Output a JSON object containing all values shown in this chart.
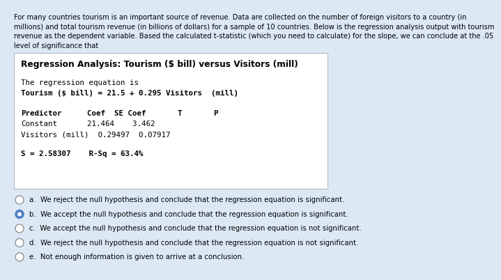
{
  "bg_color": "#dce9f5",
  "box_bg_color": "#ffffff",
  "text_color": "#000000",
  "intro_lines": [
    "For many countries tourism is an important source of revenue. Data are collected on the number of foreign visitors to a country (in",
    "millions) and total tourism revenue (in billions of dollars) for a sample of 10 countries. Below is the regression analysis output with tourism",
    "revenue as the dependent variable. Based the calculated t-statistic (which you need to calculate) for the slope, we can conclude at the .05",
    "level of significance that"
  ],
  "box_title": "Regression Analysis: Tourism ($ bill) versus Visitors (mill)",
  "line1": "The regression equation is",
  "line2": "Tourism ($ bill) = 21.5 + 0.295 Visitors  (mill)",
  "col_headers_pred": "Predictor",
  "col_headers_rest": "          Coef  SE Coef       T       P",
  "row1_pred": "Constant",
  "row1_rest": "         21.464    3.462",
  "row2": "Visitors (mill)  0.29497  0.07917",
  "stats": "S = 2.58307    R-Sq = 63.4%",
  "options": [
    "a.  We reject the null hypothesis and conclude that the regression equation is significant.",
    "b.  We accept the null hypothesis and conclude that the regression equation is significant.",
    "c.  We accept the null hypothesis and conclude that the regression equation is not significant.",
    "d.  We reject the null hypothesis and conclude that the regression equation is not significant.",
    "e.  Not enough information is given to arrive at a conclusion."
  ],
  "selected_option": 1,
  "radio_color_filled": "#4a7fc1",
  "radio_color_empty_edge": "#888888"
}
